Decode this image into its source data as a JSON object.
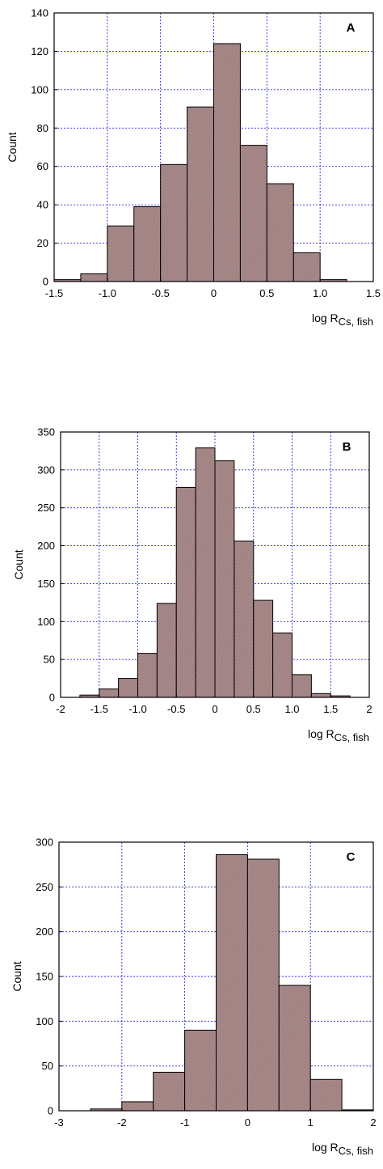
{
  "colors": {
    "bar_fill": "#a98a8a",
    "bar_stroke": "#000000",
    "grid": "#2a2ae0",
    "axis": "#000000",
    "background": "#ffffff"
  },
  "chart_data": [
    {
      "type": "bar",
      "panel_label": "A",
      "ylabel": "Count",
      "xlabel_main": "log R",
      "xlabel_sub": "Cs, fish",
      "xlim": [
        -1.5,
        1.5
      ],
      "ylim": [
        0,
        140
      ],
      "xticks": [
        "-1.5",
        "-1.0",
        "-0.5",
        "0",
        "0.5",
        "1.0",
        "1.5"
      ],
      "xtick_values": [
        -1.5,
        -1.0,
        -0.5,
        0,
        0.5,
        1.0,
        1.5
      ],
      "yticks": [
        "0",
        "20",
        "40",
        "60",
        "80",
        "100",
        "120",
        "140"
      ],
      "ytick_values": [
        0,
        20,
        40,
        60,
        80,
        100,
        120,
        140
      ],
      "grid": true,
      "bin_edges": [
        -1.5,
        -1.25,
        -1.0,
        -0.75,
        -0.5,
        -0.25,
        0,
        0.25,
        0.5,
        0.75,
        1.0,
        1.25
      ],
      "values": [
        1,
        4,
        29,
        39,
        61,
        91,
        124,
        71,
        51,
        15,
        1
      ]
    },
    {
      "type": "bar",
      "panel_label": "B",
      "ylabel": "Count",
      "xlabel_main": "log R",
      "xlabel_sub": "Cs, fish",
      "xlim": [
        -2,
        2
      ],
      "ylim": [
        0,
        350
      ],
      "xticks": [
        "-2",
        "-1.5",
        "-1.0",
        "-0.5",
        "0",
        "0.5",
        "1.0",
        "1.5",
        "2"
      ],
      "xtick_values": [
        -2,
        -1.5,
        -1.0,
        -0.5,
        0,
        0.5,
        1.0,
        1.5,
        2
      ],
      "yticks": [
        "0",
        "50",
        "100",
        "150",
        "200",
        "250",
        "300",
        "350"
      ],
      "ytick_values": [
        0,
        50,
        100,
        150,
        200,
        250,
        300,
        350
      ],
      "grid": true,
      "bin_edges": [
        -1.75,
        -1.5,
        -1.25,
        -1.0,
        -0.75,
        -0.5,
        -0.25,
        0,
        0.25,
        0.5,
        0.75,
        1.0,
        1.25,
        1.5,
        1.75
      ],
      "values": [
        3,
        11,
        25,
        58,
        124,
        277,
        329,
        312,
        206,
        128,
        85,
        30,
        5,
        2
      ]
    },
    {
      "type": "bar",
      "panel_label": "C",
      "ylabel": "Count",
      "xlabel_main": "log R",
      "xlabel_sub": "Cs, fish",
      "xlim": [
        -3,
        2
      ],
      "ylim": [
        0,
        300
      ],
      "xticks": [
        "-3",
        "-2",
        "-1",
        "0",
        "1",
        "2"
      ],
      "xtick_values": [
        -3,
        -2,
        -1,
        0,
        1,
        2
      ],
      "yticks": [
        "0",
        "50",
        "100",
        "150",
        "200",
        "250",
        "300"
      ],
      "ytick_values": [
        0,
        50,
        100,
        150,
        200,
        250,
        300
      ],
      "grid": true,
      "bin_edges": [
        -2.5,
        -2.0,
        -1.5,
        -1.0,
        -0.5,
        0,
        0.5,
        1.0,
        1.5,
        2.0
      ],
      "values": [
        2,
        10,
        43,
        90,
        286,
        281,
        140,
        35,
        1
      ]
    }
  ]
}
